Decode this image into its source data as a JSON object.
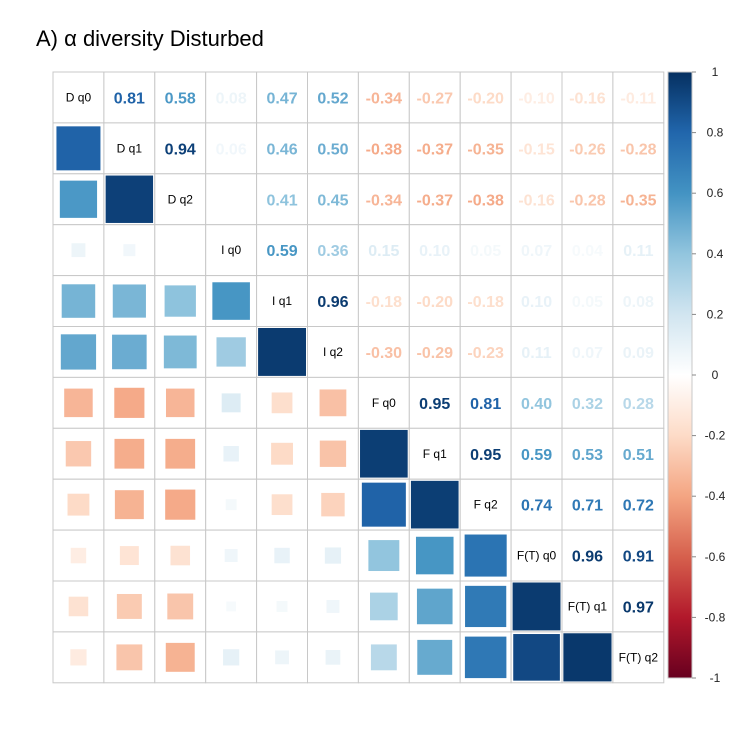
{
  "chart_data": {
    "type": "heatmap",
    "title": "A) α diversity Disturbed",
    "variables": [
      "D q0",
      "D q1",
      "D q2",
      "I q0",
      "I q1",
      "I q2",
      "F q0",
      "F q1",
      "F q2",
      "F(T) q0",
      "F(T) q1",
      "F(T) q2"
    ],
    "matrix": [
      [
        1.0,
        0.81,
        0.58,
        0.08,
        0.47,
        0.52,
        -0.34,
        -0.27,
        -0.2,
        -0.1,
        -0.16,
        -0.11
      ],
      [
        0.81,
        1.0,
        0.94,
        0.06,
        0.46,
        0.5,
        -0.38,
        -0.37,
        -0.35,
        -0.15,
        -0.26,
        -0.28
      ],
      [
        0.58,
        0.94,
        1.0,
        0.0,
        0.41,
        0.45,
        -0.34,
        -0.37,
        -0.38,
        -0.16,
        -0.28,
        -0.35
      ],
      [
        0.08,
        0.06,
        0.0,
        1.0,
        0.59,
        0.36,
        0.15,
        0.1,
        0.05,
        0.07,
        0.04,
        0.11
      ],
      [
        0.47,
        0.46,
        0.41,
        0.59,
        1.0,
        0.96,
        -0.18,
        -0.2,
        -0.18,
        0.1,
        0.05,
        0.08
      ],
      [
        0.52,
        0.5,
        0.45,
        0.36,
        0.96,
        1.0,
        -0.3,
        -0.29,
        -0.23,
        0.11,
        0.07,
        0.09
      ],
      [
        -0.34,
        -0.38,
        -0.34,
        0.15,
        -0.18,
        -0.3,
        1.0,
        0.95,
        0.81,
        0.4,
        0.32,
        0.28
      ],
      [
        -0.27,
        -0.37,
        -0.37,
        0.1,
        -0.2,
        -0.29,
        0.95,
        1.0,
        0.95,
        0.59,
        0.53,
        0.51
      ],
      [
        -0.2,
        -0.35,
        -0.38,
        0.05,
        -0.18,
        -0.23,
        0.81,
        0.95,
        1.0,
        0.74,
        0.71,
        0.72
      ],
      [
        -0.1,
        -0.15,
        -0.16,
        0.07,
        0.1,
        0.11,
        0.4,
        0.59,
        0.74,
        1.0,
        0.96,
        0.91
      ],
      [
        -0.16,
        -0.26,
        -0.28,
        0.04,
        0.05,
        0.07,
        0.32,
        0.53,
        0.71,
        0.96,
        1.0,
        0.97
      ],
      [
        -0.11,
        -0.28,
        -0.35,
        0.11,
        0.08,
        0.09,
        0.28,
        0.51,
        0.72,
        0.91,
        0.97,
        1.0
      ]
    ],
    "upper_triangle": "numbers",
    "lower_triangle": "squares",
    "diagonal": "variable labels",
    "colorbar": {
      "range": [
        -1,
        1
      ],
      "ticks": [
        "1",
        "0.8",
        "0.6",
        "0.4",
        "0.2",
        "0",
        "-0.2",
        "-0.4",
        "-0.6",
        "-0.8",
        "-1"
      ],
      "palette": [
        "#67001F",
        "#B2182B",
        "#D6604D",
        "#F4A582",
        "#FDDBC7",
        "#FFFFFF",
        "#D1E5F0",
        "#92C5DE",
        "#4393C3",
        "#2166AC",
        "#053061"
      ]
    }
  }
}
